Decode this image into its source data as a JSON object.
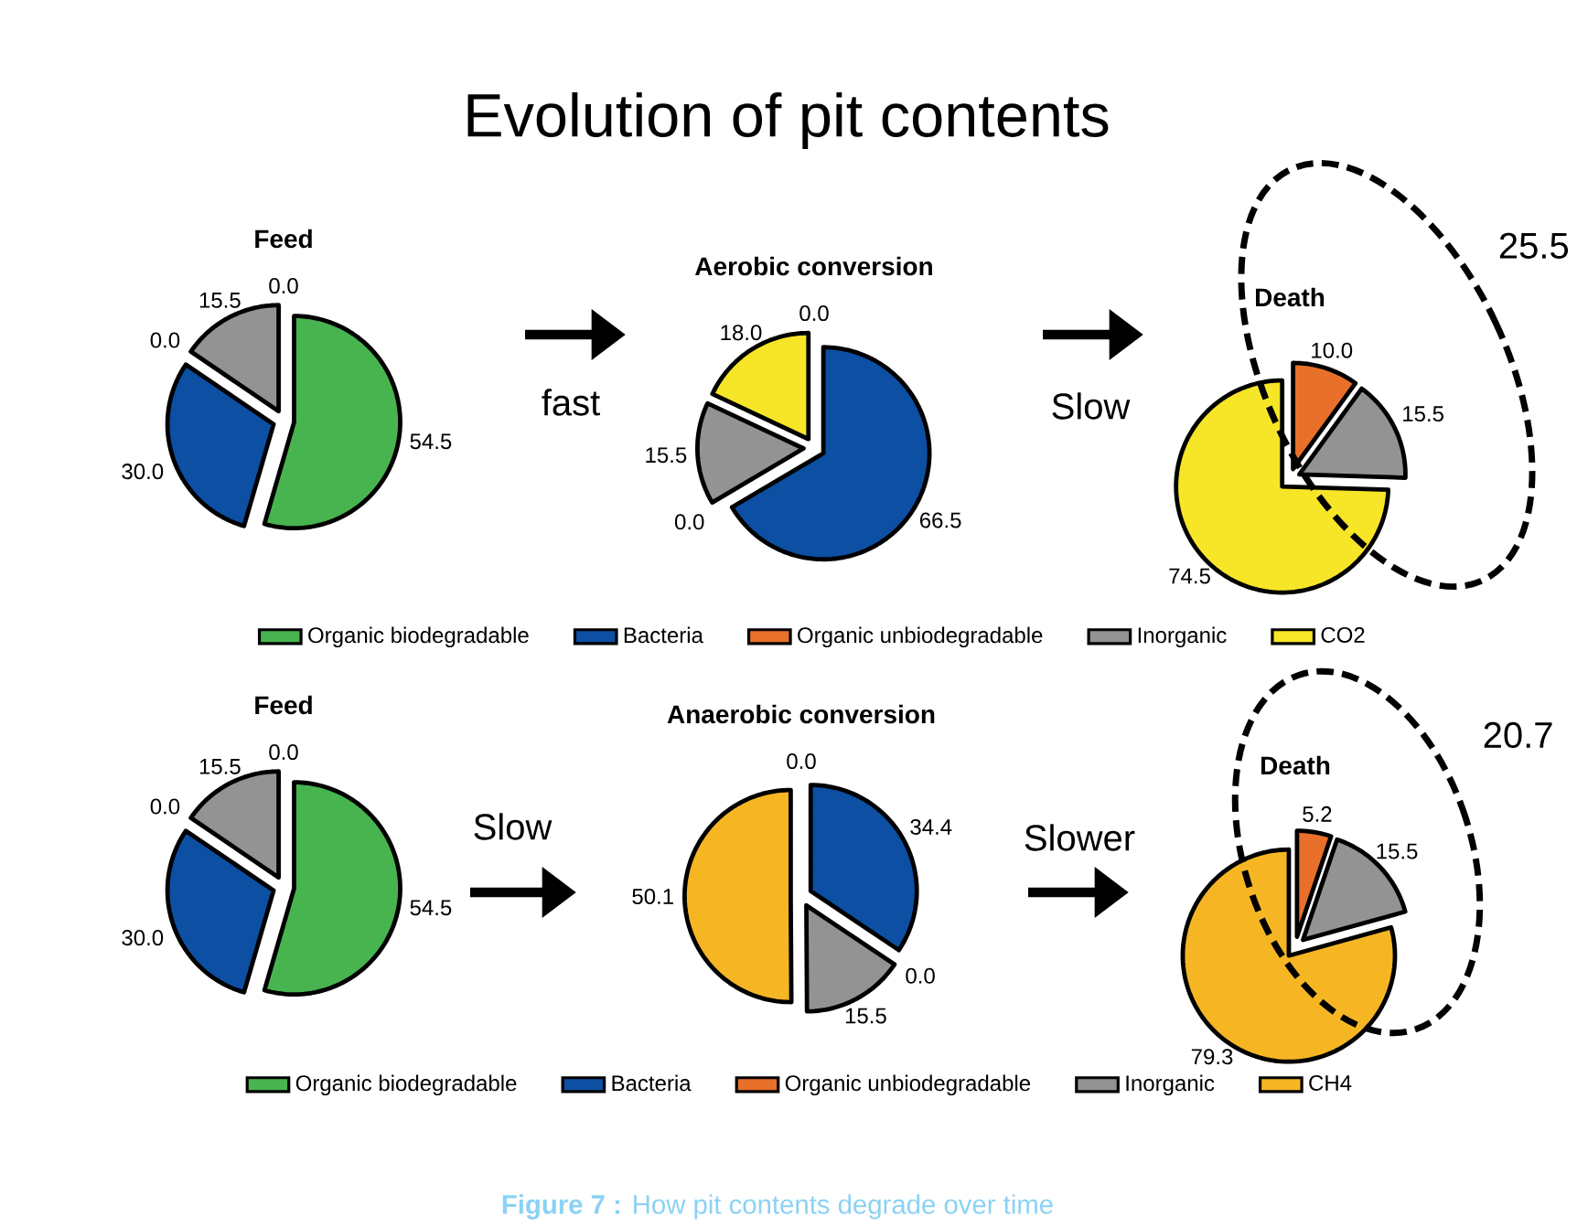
{
  "chart_data": [
    {
      "type": "other",
      "title": "Evolution of pit contents",
      "annotations": [
        "fast",
        "Slow",
        "Slow",
        "Slower",
        "**Figure 7 :** How pit contents degrade over time"
      ]
    },
    {
      "type": "pie",
      "title": "Feed",
      "categories": [
        null,
        null,
        null,
        null,
        null
      ],
      "values": [
        54.5,
        30.0,
        0.0,
        15.5,
        0.0
      ],
      "colors": [
        "#48b450",
        "#0c4fa3",
        "#e8702a",
        "#939393",
        "#f7e528"
      ],
      "value_labels": [
        "54.5",
        "30.0",
        "0.0",
        "15.5",
        "0.0"
      ]
    },
    {
      "type": "pie",
      "title": "Aerobic conversion",
      "categories": [
        "Organic biodegradable",
        "Bacteria",
        "Organic unbiodegradable",
        "Inorganic",
        "CO2"
      ],
      "values": [
        0.0,
        66.5,
        0.0,
        15.5,
        18.0
      ],
      "colors": [
        "#48b450",
        "#0c4fa3",
        "#e8702a",
        "#939393",
        "#f7e528"
      ],
      "value_labels": [
        "0.0",
        "66.5",
        "0.0",
        "15.5",
        "18.0"
      ],
      "legend": "bottom"
    },
    {
      "type": "pie",
      "title": "Death",
      "categories": [
        null,
        null,
        null,
        null,
        null
      ],
      "values": [
        0.0,
        0.0,
        10.0,
        15.5,
        74.5
      ],
      "colors": [
        "#48b450",
        "#0c4fa3",
        "#e8702a",
        "#939393",
        "#f7e528"
      ],
      "value_labels": [
        null,
        null,
        "10.0",
        "15.5",
        "74.5"
      ],
      "annotations": [
        "25.5"
      ]
    },
    {
      "type": "pie",
      "title": "Feed",
      "categories": [
        null,
        null,
        null,
        null,
        null
      ],
      "values": [
        54.5,
        30.0,
        0.0,
        15.5,
        0.0
      ],
      "colors": [
        "#48b450",
        "#0c4fa3",
        "#e8702a",
        "#939393",
        "#f6b624"
      ],
      "value_labels": [
        "54.5",
        "30.0",
        "0.0",
        "15.5",
        "0.0"
      ]
    },
    {
      "type": "pie",
      "title": "Anaerobic conversion",
      "categories": [
        "Organic biodegradable",
        "Bacteria",
        "Organic unbiodegradable",
        "Inorganic",
        "CH4"
      ],
      "values": [
        0.0,
        34.4,
        0.0,
        15.5,
        50.1
      ],
      "colors": [
        "#48b450",
        "#0c4fa3",
        "#e8702a",
        "#939393",
        "#f6b624"
      ],
      "value_labels": [
        "0.0",
        "34.4",
        "0.0",
        "15.5",
        "50.1"
      ],
      "legend": "bottom"
    },
    {
      "type": "pie",
      "title": "Death",
      "categories": [
        null,
        null,
        null,
        null,
        null
      ],
      "values": [
        0.0,
        0.0,
        5.2,
        15.5,
        79.3
      ],
      "colors": [
        "#48b450",
        "#0c4fa3",
        "#e8702a",
        "#939393",
        "#f6b624"
      ],
      "value_labels": [
        null,
        null,
        "5.2",
        "15.5",
        "79.3"
      ],
      "annotations": [
        "20.7"
      ]
    }
  ]
}
